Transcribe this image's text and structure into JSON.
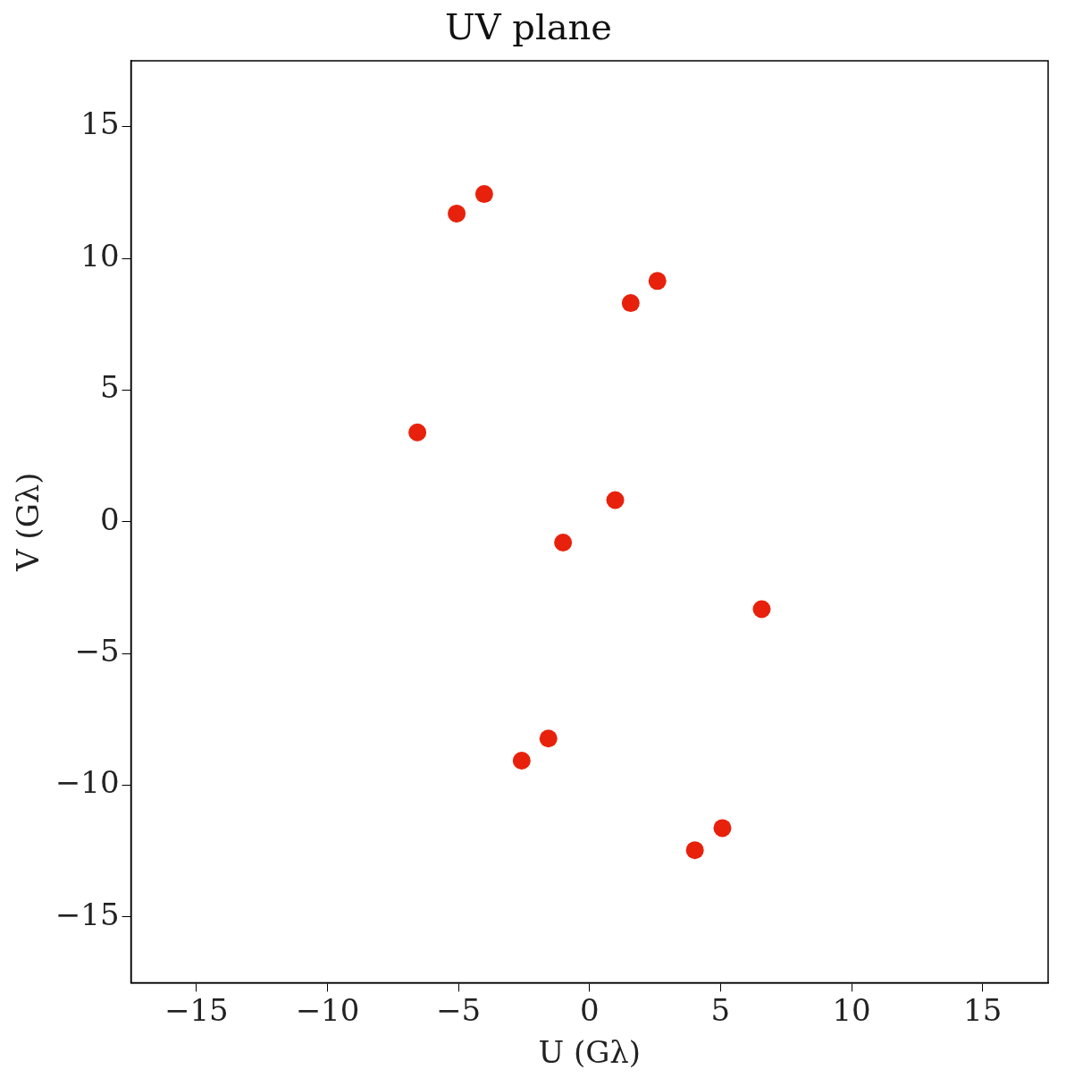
{
  "chart_data": {
    "type": "scatter",
    "title": "UV plane",
    "xlabel": "U (Gλ)",
    "ylabel": "V (Gλ)",
    "x": [
      -5.07,
      -4.02,
      1.57,
      2.59,
      -6.57,
      0.98,
      -1.01,
      6.57,
      -1.57,
      -2.59,
      4.02,
      5.07
    ],
    "series": [
      {
        "color": "#e8210c",
        "values": [
          11.7,
          12.44,
          8.3,
          9.14,
          3.39,
          0.82,
          -0.79,
          -3.32,
          -8.23,
          -9.07,
          -12.47,
          -11.63
        ]
      }
    ],
    "xlim": [
      -17.5,
      17.5
    ],
    "ylim": [
      -17.5,
      17.5
    ],
    "xticks": [
      -15,
      -10,
      -5,
      0,
      5,
      10,
      15
    ],
    "yticks": [
      -15,
      -10,
      -5,
      0,
      5,
      10,
      15
    ],
    "grid": false,
    "legend": false,
    "marker": "circle"
  }
}
